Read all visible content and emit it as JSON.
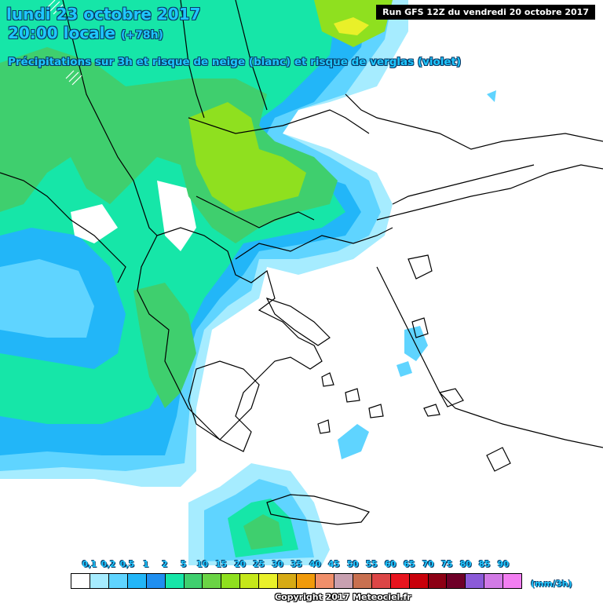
{
  "header": {
    "date_line": "lundi 23 octobre 2017",
    "time_line": "20:00 locale",
    "lead_time": "(+78h)",
    "subtitle": "Précipitations sur 3h et risque de neige (blanc) et risque de verglas (violet)",
    "run_info": "Run GFS 12Z du vendredi 20 octobre 2017"
  },
  "legend": {
    "labels": [
      "0,1",
      "0,2",
      "0,5",
      "1",
      "2",
      "5",
      "10",
      "15",
      "20",
      "25",
      "30",
      "35",
      "40",
      "45",
      "50",
      "55",
      "60",
      "65",
      "70",
      "75",
      "80",
      "85",
      "90"
    ],
    "colors": [
      "#ffffff",
      "#a6ecff",
      "#5fd4ff",
      "#22b6f8",
      "#1f8ff0",
      "#16e6a8",
      "#3fcf6e",
      "#6bd445",
      "#8fe01f",
      "#c5e81a",
      "#e9f029",
      "#d6aa14",
      "#f09a0a",
      "#f08f6a",
      "#c8a0b0",
      "#c87050",
      "#dc4646",
      "#e8141e",
      "#c8000a",
      "#8c0014",
      "#6e0028",
      "#8b5ad8",
      "#d27ae6",
      "#f37ef2"
    ],
    "unit": "(mm/3h)"
  },
  "copyright": "Copyright 2017 Meteociel.fr",
  "map_colors": {
    "light_blue": "#a6ecff",
    "blue": "#5fd4ff",
    "mid_blue": "#22b6f8",
    "cyan_green": "#16e6a8",
    "green": "#3fcf6e",
    "light_green": "#8fe01f",
    "yellow": "#e9f029",
    "coast": "#000000"
  }
}
